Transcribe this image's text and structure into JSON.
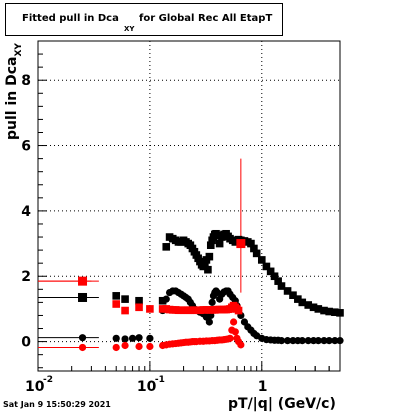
{
  "title_main": "Fitted pull in Dca",
  "title_sub": "XY",
  "title_rest": " for Global Rec All EtapT",
  "ylabel_main": "pull in Dca",
  "ylabel_sub": "XY",
  "xlabel": "pT/|q| (GeV/c)",
  "date_stamp": "Sat Jan  9 15:50:29 2021",
  "colors": {
    "black": "#000000",
    "red": "#ff0000"
  },
  "chart_data": {
    "type": "scatter",
    "x_scale": "log",
    "xlim": [
      0.01,
      5.0
    ],
    "ylim": [
      -0.9,
      9.2
    ],
    "grid": true,
    "x_ticks": [
      {
        "value": 0.01,
        "base": "10",
        "exp": "-2"
      },
      {
        "value": 0.1,
        "base": "10",
        "exp": "-1"
      },
      {
        "value": 1,
        "label": "1"
      }
    ],
    "y_ticks": [
      0,
      2,
      4,
      6,
      8
    ],
    "series": [
      {
        "color": "#000000",
        "marker": "square",
        "x": [
          0.025,
          0.05,
          0.06,
          0.08,
          0.13,
          0.14,
          0.15,
          0.16,
          0.17,
          0.18,
          0.19,
          0.2,
          0.21,
          0.22,
          0.23,
          0.24,
          0.25,
          0.26,
          0.27,
          0.28,
          0.29,
          0.3,
          0.31,
          0.32,
          0.33,
          0.34,
          0.35,
          0.36,
          0.37,
          0.38,
          0.39,
          0.4,
          0.42,
          0.44,
          0.46,
          0.48,
          0.5,
          0.52,
          0.55,
          0.58,
          0.6,
          0.62,
          0.65,
          0.7,
          0.75,
          0.8,
          0.85,
          0.9,
          1.0,
          1.1,
          1.2,
          1.3,
          1.4,
          1.5,
          1.7,
          1.9,
          2.1,
          2.3,
          2.6,
          2.9,
          3.2,
          3.6,
          4.0,
          4.5,
          5.0
        ],
        "y": [
          1.35,
          1.4,
          1.3,
          1.25,
          1.25,
          2.9,
          3.2,
          3.15,
          3.1,
          3.05,
          3.05,
          3.1,
          3.05,
          3.0,
          2.95,
          2.85,
          2.75,
          2.65,
          2.55,
          2.45,
          2.35,
          2.3,
          2.4,
          2.5,
          2.2,
          2.6,
          2.95,
          3.1,
          3.2,
          3.28,
          3.3,
          3.25,
          3.0,
          3.2,
          3.28,
          3.3,
          3.22,
          3.15,
          3.1,
          3.05,
          3.1,
          3.12,
          3.1,
          3.08,
          3.05,
          3.0,
          2.85,
          2.7,
          2.5,
          2.3,
          2.15,
          2.0,
          1.85,
          1.7,
          1.55,
          1.42,
          1.3,
          1.2,
          1.12,
          1.05,
          1.0,
          0.95,
          0.92,
          0.9,
          0.88
        ]
      },
      {
        "color": "#000000",
        "marker": "circle",
        "x": [
          0.025,
          0.05,
          0.06,
          0.07,
          0.08,
          0.1,
          0.13,
          0.14,
          0.15,
          0.16,
          0.17,
          0.18,
          0.19,
          0.2,
          0.21,
          0.22,
          0.23,
          0.24,
          0.25,
          0.26,
          0.28,
          0.3,
          0.32,
          0.34,
          0.35,
          0.36,
          0.37,
          0.38,
          0.39,
          0.4,
          0.42,
          0.44,
          0.46,
          0.48,
          0.5,
          0.52,
          0.55,
          0.58,
          0.6,
          0.62,
          0.65,
          0.7,
          0.75,
          0.8,
          0.85,
          0.9,
          1.0,
          1.1,
          1.2,
          1.3,
          1.4,
          1.5,
          1.7,
          1.9,
          2.1,
          2.3,
          2.6,
          2.9,
          3.2,
          3.6,
          4.0,
          4.5,
          5.0
        ],
        "y": [
          0.12,
          0.1,
          0.08,
          0.1,
          0.12,
          0.1,
          0.95,
          1.3,
          1.5,
          1.55,
          1.55,
          1.5,
          1.45,
          1.4,
          1.35,
          1.3,
          1.2,
          1.1,
          1.0,
          0.95,
          0.9,
          0.85,
          0.75,
          0.6,
          0.8,
          1.2,
          1.4,
          1.5,
          1.55,
          1.5,
          1.3,
          1.45,
          1.52,
          1.55,
          1.55,
          1.45,
          1.35,
          1.25,
          1.1,
          0.95,
          0.8,
          0.6,
          0.45,
          0.35,
          0.25,
          0.18,
          0.1,
          0.06,
          0.05,
          0.04,
          0.04,
          0.03,
          0.03,
          0.03,
          0.03,
          0.03,
          0.03,
          0.03,
          0.03,
          0.03,
          0.03,
          0.03,
          0.03
        ]
      },
      {
        "color": "#ff0000",
        "marker": "square",
        "x": [
          0.025,
          0.05,
          0.06,
          0.08,
          0.1,
          0.13,
          0.14,
          0.15,
          0.16,
          0.17,
          0.18,
          0.19,
          0.2,
          0.21,
          0.22,
          0.23,
          0.24,
          0.25,
          0.26,
          0.28,
          0.3,
          0.32,
          0.34,
          0.36,
          0.38,
          0.4,
          0.42,
          0.44,
          0.46,
          0.48,
          0.5,
          0.52,
          0.54,
          0.56,
          0.58,
          0.6,
          0.62,
          0.65
        ],
        "y": [
          1.85,
          1.15,
          0.95,
          1.05,
          1.0,
          1.0,
          1.0,
          0.98,
          0.97,
          0.97,
          0.96,
          0.96,
          0.96,
          0.96,
          0.96,
          0.96,
          0.96,
          0.96,
          0.96,
          0.96,
          0.97,
          0.97,
          0.97,
          0.97,
          0.97,
          0.98,
          0.98,
          0.98,
          0.98,
          0.98,
          0.99,
          1.0,
          1.05,
          1.1,
          1.05,
          1.0,
          0.95,
          3.0
        ],
        "error_x": [
          [
            0.01,
            0.03
          ]
        ],
        "error_y": [
          [
            0.65,
            1.5,
            5.6
          ]
        ]
      },
      {
        "color": "#ff0000",
        "marker": "circle",
        "x": [
          0.025,
          0.05,
          0.06,
          0.08,
          0.1,
          0.13,
          0.14,
          0.15,
          0.16,
          0.17,
          0.18,
          0.19,
          0.2,
          0.21,
          0.22,
          0.23,
          0.24,
          0.25,
          0.26,
          0.28,
          0.3,
          0.32,
          0.34,
          0.36,
          0.38,
          0.4,
          0.42,
          0.44,
          0.46,
          0.48,
          0.5,
          0.52,
          0.54,
          0.56,
          0.58,
          0.6,
          0.62,
          0.65
        ],
        "y": [
          -0.18,
          -0.18,
          -0.12,
          -0.15,
          -0.15,
          -0.12,
          -0.1,
          -0.08,
          -0.07,
          -0.06,
          -0.05,
          -0.04,
          -0.03,
          -0.02,
          -0.02,
          -0.01,
          0.0,
          0.0,
          0.0,
          0.01,
          0.01,
          0.02,
          0.02,
          0.03,
          0.03,
          0.04,
          0.05,
          0.05,
          0.06,
          0.07,
          0.08,
          0.1,
          0.35,
          0.6,
          0.3,
          0.1,
          0.0,
          -0.1
        ]
      }
    ]
  }
}
